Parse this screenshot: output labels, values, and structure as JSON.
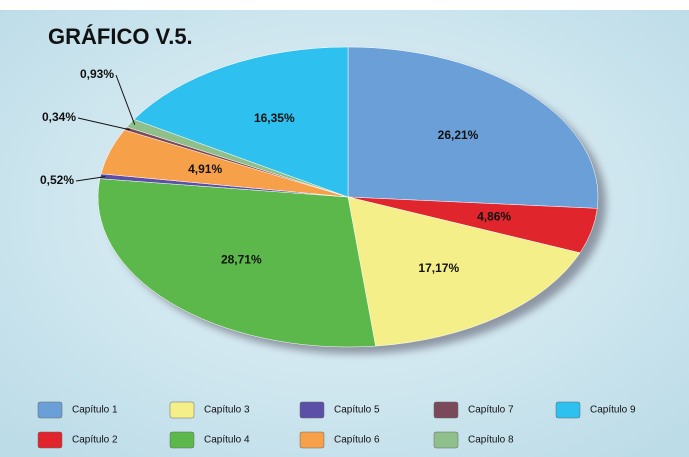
{
  "chart_data": {
    "type": "pie",
    "title": "GRÁFICO V.5.",
    "categories": [
      "Capítulo 1",
      "Capítulo 2",
      "Capítulo 3",
      "Capítulo 4",
      "Capítulo 5",
      "Capítulo 6",
      "Capítulo 7",
      "Capítulo 8",
      "Capítulo 9"
    ],
    "values": [
      26.21,
      4.86,
      17.17,
      28.71,
      0.52,
      4.91,
      0.34,
      0.93,
      16.35
    ],
    "value_labels": [
      "26,21%",
      "4,86%",
      "17,17%",
      "28,71%",
      "0,52%",
      "4,91%",
      "0,34%",
      "0,93%",
      "16,35%"
    ],
    "colors": [
      "#6a9fd8",
      "#e0262c",
      "#f5ef8a",
      "#5cb84a",
      "#5b4fa8",
      "#f7a04a",
      "#7a4a5a",
      "#8fbf8a",
      "#2ec0ee"
    ]
  }
}
